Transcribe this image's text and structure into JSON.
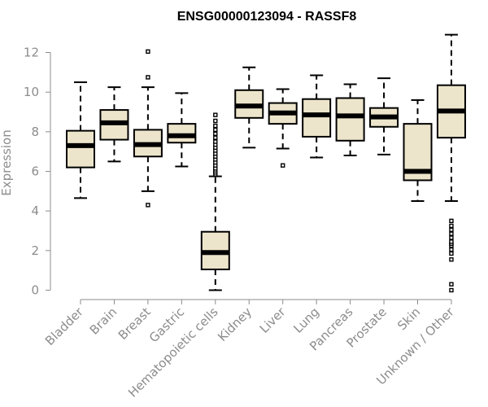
{
  "chart_data": {
    "type": "boxplot",
    "title": "ENSG00000123094 - RASSF8",
    "xlabel": "",
    "ylabel": "Expression",
    "ylim": [
      0,
      13.5
    ],
    "yticks": [
      0,
      2,
      4,
      6,
      8,
      10,
      12
    ],
    "grid": false,
    "colors": {
      "box_fill": "#ede5cb",
      "stroke": "#000000",
      "axis": "#8c8c8c"
    },
    "categories": [
      "Bladder",
      "Brain",
      "Breast",
      "Gastric",
      "Hematopoietic cells",
      "Kidney",
      "Liver",
      "Lung",
      "Pancreas",
      "Prostate",
      "Skin",
      "Unknown / Other"
    ],
    "boxes": [
      {
        "category": "Bladder",
        "whisker_low": 4.65,
        "q1": 6.2,
        "median": 7.3,
        "q3": 8.05,
        "whisker_high": 10.5,
        "outliers": []
      },
      {
        "category": "Brain",
        "whisker_low": 6.5,
        "q1": 7.6,
        "median": 8.45,
        "q3": 9.1,
        "whisker_high": 10.25,
        "outliers": []
      },
      {
        "category": "Breast",
        "whisker_low": 5.0,
        "q1": 6.75,
        "median": 7.35,
        "q3": 8.1,
        "whisker_high": 10.25,
        "outliers": [
          4.3,
          10.75,
          12.05
        ]
      },
      {
        "category": "Gastric",
        "whisker_low": 6.25,
        "q1": 7.45,
        "median": 7.8,
        "q3": 8.4,
        "whisker_high": 9.95,
        "outliers": []
      },
      {
        "category": "Hematopoietic cells",
        "whisker_low": 0.0,
        "q1": 1.05,
        "median": 1.9,
        "q3": 2.95,
        "whisker_high": 5.75,
        "outliers": [
          5.85,
          5.95,
          6.05,
          6.15,
          6.3,
          6.45,
          6.6,
          6.75,
          6.9,
          7.05,
          7.2,
          7.35,
          7.5,
          7.7,
          7.9,
          8.1,
          8.3,
          8.55,
          8.85
        ]
      },
      {
        "category": "Kidney",
        "whisker_low": 7.2,
        "q1": 8.7,
        "median": 9.3,
        "q3": 10.1,
        "whisker_high": 11.25,
        "outliers": []
      },
      {
        "category": "Liver",
        "whisker_low": 7.15,
        "q1": 8.4,
        "median": 8.95,
        "q3": 9.45,
        "whisker_high": 10.15,
        "outliers": [
          6.3
        ]
      },
      {
        "category": "Lung",
        "whisker_low": 6.7,
        "q1": 7.75,
        "median": 8.85,
        "q3": 9.65,
        "whisker_high": 10.85,
        "outliers": []
      },
      {
        "category": "Pancreas",
        "whisker_low": 6.8,
        "q1": 7.55,
        "median": 8.8,
        "q3": 9.7,
        "whisker_high": 10.4,
        "outliers": []
      },
      {
        "category": "Prostate",
        "whisker_low": 6.85,
        "q1": 8.25,
        "median": 8.75,
        "q3": 9.2,
        "whisker_high": 10.7,
        "outliers": []
      },
      {
        "category": "Skin",
        "whisker_low": 4.5,
        "q1": 5.55,
        "median": 6.0,
        "q3": 8.4,
        "whisker_high": 9.6,
        "outliers": []
      },
      {
        "category": "Unknown / Other",
        "whisker_low": 4.5,
        "q1": 7.7,
        "median": 9.05,
        "q3": 10.35,
        "whisker_high": 12.9,
        "outliers": [
          0.0,
          0.3,
          1.55,
          1.85,
          2.05,
          2.25,
          2.35,
          2.45,
          2.65,
          2.85,
          3.05,
          3.25,
          3.5
        ]
      }
    ]
  }
}
